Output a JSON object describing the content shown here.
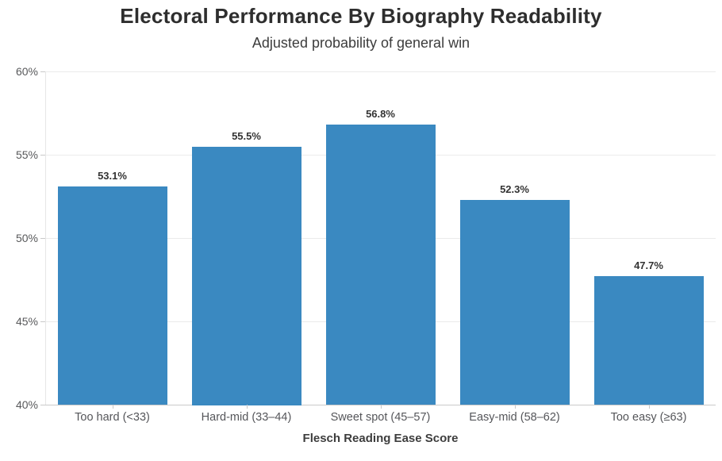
{
  "header": {
    "title": "Electoral Performance By Biography Readability",
    "subtitle": "Adjusted probability of general win"
  },
  "chart_data": {
    "type": "bar",
    "title": "Electoral Performance By Biography Readability",
    "subtitle": "Adjusted probability of general win",
    "xlabel": "Flesch Reading Ease Score",
    "ylabel": "",
    "categories": [
      "Too hard (<33)",
      "Hard-mid (33–44)",
      "Sweet spot (45–57)",
      "Easy-mid (58–62)",
      "Too easy (≥63)"
    ],
    "values": [
      53.1,
      55.5,
      56.8,
      52.3,
      47.7
    ],
    "value_labels": [
      "53.1%",
      "55.5%",
      "56.8%",
      "52.3%",
      "47.7%"
    ],
    "ylim": [
      40,
      60
    ],
    "yticks": [
      40,
      45,
      50,
      55,
      60
    ],
    "ytick_labels": [
      "40%",
      "45%",
      "50%",
      "55%",
      "60%"
    ],
    "grid": true,
    "legend_position": "none",
    "bar_color": "#3a89c1",
    "gridline_color": "#ebebeb",
    "axis_line_color": "#c9c9c9",
    "text_color": "#333333"
  }
}
